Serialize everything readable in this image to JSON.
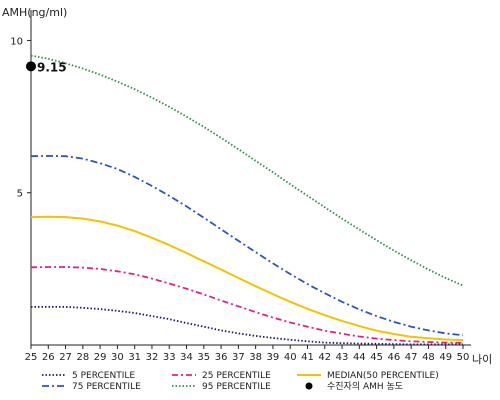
{
  "chart_data": {
    "type": "line",
    "ylabel": "AMH(ng/ml)",
    "xlabel": "나이",
    "xlim": [
      25,
      50
    ],
    "ylim": [
      0,
      11
    ],
    "x_ticks": [
      25,
      26,
      27,
      28,
      29,
      30,
      31,
      32,
      33,
      34,
      35,
      36,
      37,
      38,
      39,
      40,
      41,
      42,
      43,
      44,
      45,
      46,
      47,
      48,
      49,
      50
    ],
    "y_ticks": [
      5,
      10
    ],
    "grid": false,
    "legend_position": "bottom",
    "x": [
      25,
      26,
      27,
      28,
      29,
      30,
      31,
      32,
      33,
      34,
      35,
      36,
      37,
      38,
      39,
      40,
      41,
      42,
      43,
      44,
      45,
      46,
      47,
      48,
      49,
      50
    ],
    "series": [
      {
        "name": "5 PERCENTILE",
        "color": "#1a1a6e",
        "dash": "dotted",
        "values": [
          1.25,
          1.25,
          1.25,
          1.22,
          1.18,
          1.12,
          1.05,
          0.95,
          0.85,
          0.72,
          0.6,
          0.48,
          0.38,
          0.3,
          0.23,
          0.17,
          0.12,
          0.08,
          0.06,
          0.05,
          0.04,
          0.03,
          0.02,
          0.02,
          0.02,
          0.02
        ]
      },
      {
        "name": "25 PERCENTILE",
        "color": "#e0208a",
        "dash": "dashdot",
        "values": [
          2.55,
          2.56,
          2.56,
          2.54,
          2.5,
          2.42,
          2.32,
          2.18,
          2.02,
          1.85,
          1.66,
          1.46,
          1.27,
          1.08,
          0.9,
          0.74,
          0.6,
          0.47,
          0.37,
          0.28,
          0.21,
          0.16,
          0.12,
          0.1,
          0.08,
          0.07
        ]
      },
      {
        "name": "MEDIAN(50 PERCENTILE)",
        "color": "#f2c400",
        "dash": "solid",
        "values": [
          4.2,
          4.21,
          4.2,
          4.15,
          4.06,
          3.92,
          3.74,
          3.52,
          3.28,
          3.02,
          2.75,
          2.48,
          2.2,
          1.93,
          1.67,
          1.42,
          1.19,
          0.98,
          0.79,
          0.62,
          0.47,
          0.36,
          0.27,
          0.22,
          0.18,
          0.16
        ]
      },
      {
        "name": "75 PERCENTILE",
        "color": "#2e56b8",
        "dash": "dashdot2",
        "values": [
          6.2,
          6.21,
          6.2,
          6.12,
          5.97,
          5.78,
          5.52,
          5.22,
          4.9,
          4.55,
          4.18,
          3.8,
          3.42,
          3.05,
          2.68,
          2.33,
          2.0,
          1.7,
          1.42,
          1.17,
          0.95,
          0.76,
          0.6,
          0.48,
          0.38,
          0.32
        ]
      },
      {
        "name": "95 PERCENTILE",
        "color": "#2e8a4a",
        "dash": "dotted",
        "values": [
          9.5,
          9.4,
          9.25,
          9.08,
          8.88,
          8.65,
          8.4,
          8.12,
          7.82,
          7.5,
          7.16,
          6.8,
          6.43,
          6.05,
          5.67,
          5.28,
          4.9,
          4.52,
          4.15,
          3.79,
          3.44,
          3.1,
          2.78,
          2.48,
          2.2,
          1.95
        ]
      }
    ],
    "point": {
      "name": "수진자의 AMH 농도",
      "x": 25,
      "y": 9.15,
      "label": "9.15",
      "color": "#000000"
    }
  }
}
